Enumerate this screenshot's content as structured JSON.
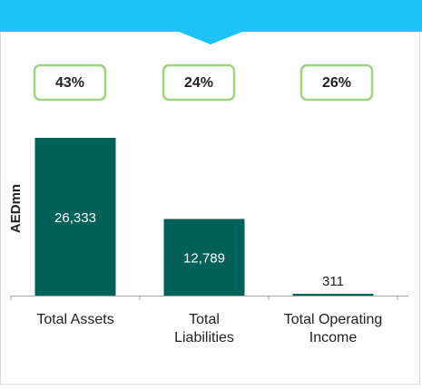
{
  "chart_data": {
    "type": "bar",
    "y_label": "AEDmn",
    "annotations": [
      "43%",
      "24%",
      "26%"
    ],
    "categories": [
      "Total Assets",
      "Total Liabilities",
      "Total Operating Income"
    ],
    "values": [
      26333,
      12789,
      311
    ],
    "value_labels": [
      "26,333",
      "12,789",
      "311"
    ],
    "color": "#00605a",
    "ylim": [
      0,
      28000
    ]
  }
}
